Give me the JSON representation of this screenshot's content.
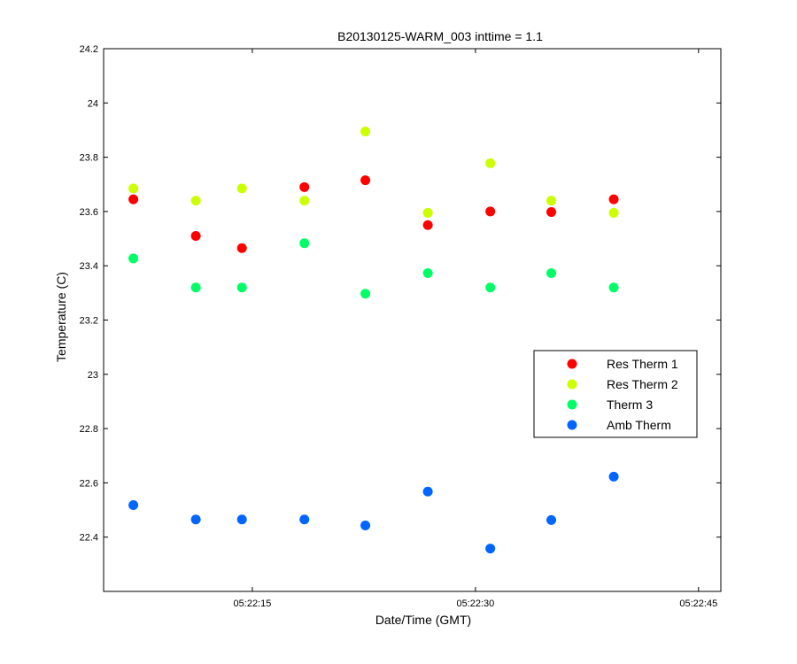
{
  "chart_data": {
    "type": "scatter",
    "title": "B20130125-WARM_003 inttime = 1.1",
    "xlabel": "Date/Time (GMT)",
    "ylabel": "Temperature (C)",
    "ylim": [
      22.2,
      24.2
    ],
    "yticks": [
      22.4,
      22.6,
      22.8,
      23,
      23.2,
      23.4,
      23.6,
      23.8,
      24,
      24.2
    ],
    "yticklabels": [
      "22.4",
      "22.6",
      "22.8",
      "23",
      "23.2",
      "23.4",
      "23.6",
      "23.8",
      "24",
      "24.2"
    ],
    "xlim": [
      "05:22:05",
      "05:22:46.5"
    ],
    "xticks": [
      "05:22:15",
      "05:22:30",
      "05:22:45"
    ],
    "grid": false,
    "legend_position": "right",
    "x": [
      "05:22:07",
      "05:22:11.2",
      "05:22:14.3",
      "05:22:18.5",
      "05:22:22.6",
      "05:22:26.8",
      "05:22:31",
      "05:22:35.1",
      "05:22:39.3"
    ],
    "series": [
      {
        "name": "Res Therm 1",
        "color": "#ff0000",
        "values": [
          23.645,
          23.51,
          23.465,
          23.69,
          23.715,
          23.55,
          23.6,
          23.598,
          23.645
        ]
      },
      {
        "name": "Res Therm 2",
        "color": "#ccff00",
        "values": [
          23.685,
          23.64,
          23.685,
          23.64,
          23.895,
          23.595,
          23.778,
          23.64,
          23.595
        ]
      },
      {
        "name": "Therm 3",
        "color": "#00ff66",
        "values": [
          23.427,
          23.32,
          23.32,
          23.483,
          23.297,
          23.373,
          23.32,
          23.373,
          23.32
        ]
      },
      {
        "name": "Amb Therm",
        "color": "#0066ff",
        "values": [
          22.518,
          22.465,
          22.465,
          22.465,
          22.443,
          22.568,
          22.358,
          22.463,
          22.623
        ]
      }
    ]
  }
}
